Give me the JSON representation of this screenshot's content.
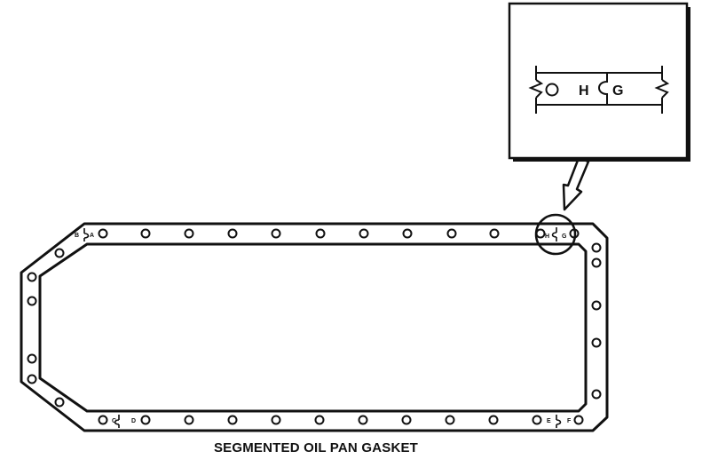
{
  "caption": "SEGMENTED OIL PAN GASKET",
  "gasket": {
    "joint_labels": {
      "a": "A",
      "b": "B",
      "c": "C",
      "d": "D",
      "e": "E",
      "f": "F",
      "g": "G",
      "h": "H"
    }
  },
  "detail": {
    "label_h": "H",
    "label_g": "G"
  },
  "colors": {
    "ink": "#111111",
    "background": "#ffffff"
  }
}
